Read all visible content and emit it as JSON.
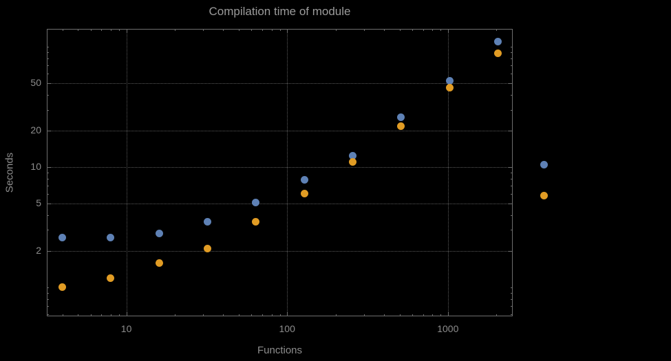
{
  "colors": {
    "background": "#000000",
    "grid": "#5c5c5c",
    "frame": "#6f6f6f",
    "title_text": "#9b9b9b",
    "label_text": "#8d8d8d",
    "series_blue": "#5e81b5",
    "series_orange": "#e19c24"
  },
  "chart_data": {
    "type": "scatter",
    "title": "Compilation time of module",
    "xlabel": "Functions",
    "ylabel": "Seconds",
    "x_scale": "log",
    "y_scale": "log",
    "grid": true,
    "x_range": [
      3.2,
      2530
    ],
    "y_range": [
      0.575,
      141
    ],
    "x_ticks": [
      10,
      100,
      1000
    ],
    "y_ticks": [
      2,
      5,
      10,
      20,
      50
    ],
    "x": [
      4,
      8,
      16,
      32,
      64,
      128,
      256,
      512,
      1024,
      2048
    ],
    "series": [
      {
        "name": "blue",
        "color": "#5e81b5",
        "values": [
          2.6,
          2.6,
          2.8,
          3.5,
          5.1,
          7.8,
          12.5,
          26,
          52,
          110
        ]
      },
      {
        "name": "orange",
        "color": "#e19c24",
        "values": [
          1.0,
          1.2,
          1.6,
          2.1,
          3.5,
          6.0,
          11,
          22,
          46,
          88
        ]
      }
    ],
    "outside_markers": [
      {
        "series": "blue",
        "color": "#5e81b5",
        "value": 10.5
      },
      {
        "series": "orange",
        "color": "#e19c24",
        "value": 5.8
      }
    ]
  }
}
